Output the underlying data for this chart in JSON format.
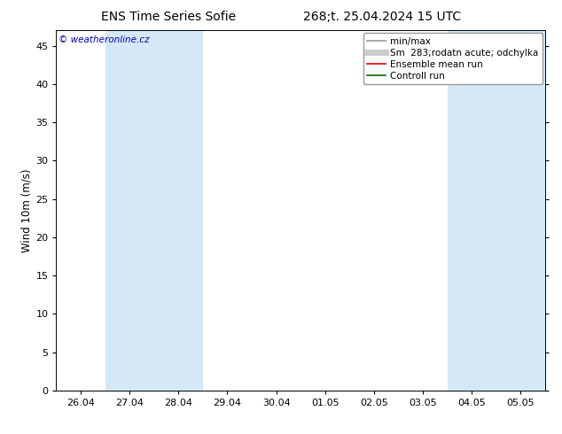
{
  "title_left": "ENS Time Series Sofie",
  "title_right": "268;t. 25.04.2024 15 UTC",
  "ylabel": "Wind 10m (m/s)",
  "watermark": "© weatheronline.cz",
  "watermark_color": "#0000bb",
  "ylim": [
    0,
    47
  ],
  "yticks": [
    0,
    5,
    10,
    15,
    20,
    25,
    30,
    35,
    40,
    45
  ],
  "xtick_labels": [
    "26.04",
    "27.04",
    "28.04",
    "29.04",
    "30.04",
    "01.05",
    "02.05",
    "03.05",
    "04.05",
    "05.05"
  ],
  "xtick_positions": [
    0,
    1,
    2,
    3,
    4,
    5,
    6,
    7,
    8,
    9
  ],
  "xlim": [
    -0.5,
    9.5
  ],
  "shaded_bands": [
    {
      "x_start": 0.5,
      "x_end": 2.5,
      "color": "#d4e8f8"
    },
    {
      "x_start": 7.5,
      "x_end": 9.5,
      "color": "#d4e8f8"
    }
  ],
  "legend_entries": [
    {
      "label": "min/max",
      "color": "#aaaaaa",
      "lw": 1.5,
      "ls": "solid"
    },
    {
      "label": "Sm  283;rodatn acute; odchylka",
      "color": "#cccccc",
      "lw": 5,
      "ls": "solid"
    },
    {
      "label": "Ensemble mean run",
      "color": "#dd0000",
      "lw": 1.2,
      "ls": "solid"
    },
    {
      "label": "Controll run",
      "color": "#006600",
      "lw": 1.2,
      "ls": "solid"
    }
  ],
  "bg_color": "#ffffff",
  "plot_bg_color": "#ffffff",
  "title_fontsize": 10,
  "label_fontsize": 8.5,
  "tick_fontsize": 8,
  "legend_fontsize": 7.5
}
